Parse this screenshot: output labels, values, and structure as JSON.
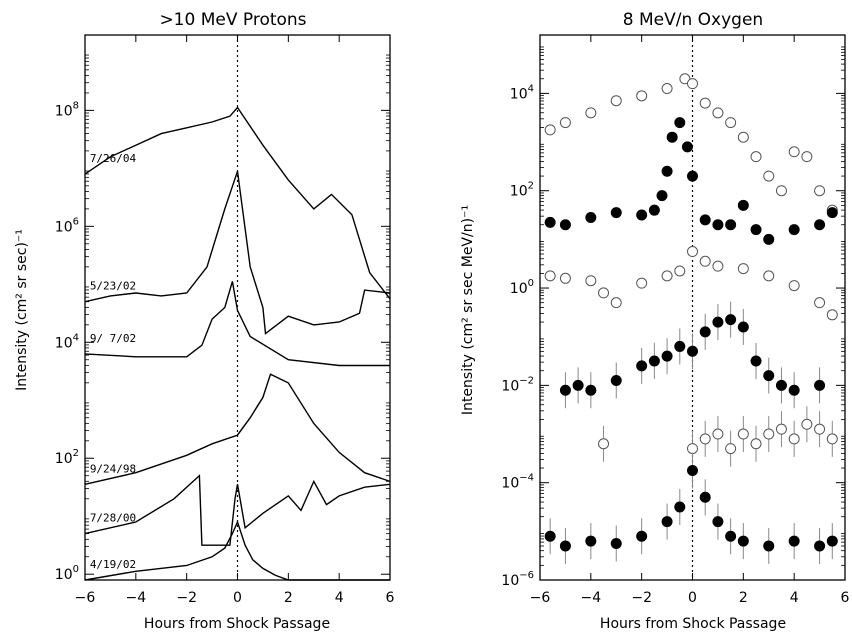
{
  "chart_data": [
    {
      "type": "line",
      "title": ">10 MeV Protons",
      "xlabel": "Hours from Shock Passage",
      "ylabel": "Intensity (cm² sr sec)⁻¹",
      "xlim": [
        -6,
        6
      ],
      "ylim_log10": [
        -0.1,
        9.3
      ],
      "xticks": [
        -6,
        -4,
        -2,
        0,
        2,
        4,
        6
      ],
      "xtick_labels": [
        "−6",
        "−4",
        "−2",
        "0",
        "2",
        "4",
        "6"
      ],
      "yticks_log10": [
        0,
        2,
        4,
        6,
        8
      ],
      "ytick_labels": [
        {
          "base": "10",
          "exp": "0"
        },
        {
          "base": "10",
          "exp": "2"
        },
        {
          "base": "10",
          "exp": "4"
        },
        {
          "base": "10",
          "exp": "6"
        },
        {
          "base": "10",
          "exp": "8"
        }
      ],
      "vline_x": 0,
      "series": [
        {
          "name": "7/26/04",
          "x": [
            -6,
            -5,
            -4,
            -3,
            -2,
            -1,
            -0.3,
            0,
            1,
            2,
            3,
            3.7,
            4.5,
            5.2,
            6
          ],
          "y_log10": [
            6.9,
            7.2,
            7.4,
            7.6,
            7.7,
            7.8,
            7.9,
            8.05,
            7.4,
            6.8,
            6.3,
            6.55,
            6.2,
            5.2,
            4.75
          ]
        },
        {
          "name": "5/23/02",
          "x": [
            -6,
            -5,
            -4,
            -3,
            -2,
            -1.2,
            -0.5,
            0,
            0.5,
            1,
            1.1,
            2,
            3,
            4,
            4.8,
            5,
            6
          ],
          "y_log10": [
            4.7,
            4.8,
            4.85,
            4.8,
            4.85,
            5.3,
            6.3,
            6.95,
            5.3,
            4.6,
            4.15,
            4.45,
            4.3,
            4.35,
            4.5,
            4.9,
            4.85
          ]
        },
        {
          "name": "9/ 7/02",
          "x": [
            -6,
            -4,
            -2,
            -1.4,
            -1,
            -0.5,
            -0.2,
            0,
            0.5,
            2,
            4,
            6
          ],
          "y_log10": [
            3.8,
            3.75,
            3.75,
            3.95,
            4.4,
            4.6,
            5.05,
            4.55,
            4.1,
            3.7,
            3.6,
            3.6
          ]
        },
        {
          "name": "9/24/98",
          "x": [
            -6,
            -4,
            -2,
            -1,
            0,
            0.5,
            1,
            1.3,
            2,
            3,
            4,
            5,
            6
          ],
          "y_log10": [
            1.55,
            1.75,
            2.05,
            2.25,
            2.4,
            2.7,
            3.05,
            3.45,
            3.3,
            2.6,
            2.1,
            1.75,
            1.6
          ]
        },
        {
          "name": "7/28/00",
          "x": [
            -6,
            -4,
            -2.5,
            -1.5,
            -1.4,
            -0.3,
            -0.1,
            0,
            0.3,
            1,
            2,
            2.5,
            3,
            3.5,
            4,
            5,
            6
          ],
          "y_log10": [
            0.7,
            0.9,
            1.3,
            1.7,
            0.5,
            0.5,
            1.3,
            1.55,
            0.8,
            1.05,
            1.35,
            1.1,
            1.6,
            1.2,
            1.35,
            1.5,
            1.55
          ]
        },
        {
          "name": "4/19/02",
          "x": [
            -6,
            -4,
            -2,
            -1,
            -0.5,
            -0.2,
            0,
            0.3,
            0.6,
            1,
            1.5,
            2,
            3,
            6
          ],
          "y_log10": [
            -0.1,
            0.05,
            0.15,
            0.3,
            0.45,
            0.7,
            0.9,
            0.5,
            0.25,
            0.1,
            -0.02,
            -0.1,
            -0.1,
            -0.1
          ]
        }
      ],
      "date_labels": [
        "7/26/04",
        "5/23/02",
        "9/ 7/02",
        "9/24/98",
        "7/28/00",
        "4/19/02"
      ]
    },
    {
      "type": "scatter",
      "title": "8 MeV/n Oxygen",
      "xlabel": "Hours from Shock Passage",
      "ylabel": "Intensity (cm² sr sec MeV/n)⁻¹",
      "xlim": [
        -6,
        6
      ],
      "ylim_log10": [
        -6,
        5.2
      ],
      "xticks": [
        -6,
        -4,
        -2,
        0,
        2,
        4,
        6
      ],
      "xtick_labels": [
        "−6",
        "−4",
        "−2",
        "0",
        "2",
        "4",
        "6"
      ],
      "yticks_log10": [
        -6,
        -4,
        -2,
        0,
        2,
        4
      ],
      "ytick_labels": [
        {
          "base": "10",
          "exp": "−6"
        },
        {
          "base": "10",
          "exp": "−4"
        },
        {
          "base": "10",
          "exp": "−2"
        },
        {
          "base": "10",
          "exp": "0"
        },
        {
          "base": "10",
          "exp": "2"
        },
        {
          "base": "10",
          "exp": "4"
        }
      ],
      "vline_x": 0,
      "series": [
        {
          "marker": "open",
          "x": [
            -5.6,
            -5,
            -4,
            -3,
            -2,
            -1,
            -0.3,
            0,
            0.5,
            1,
            1.5,
            2,
            2.5,
            3,
            3.5,
            4,
            4.5,
            5,
            5.5
          ],
          "y_log10": [
            3.25,
            3.4,
            3.6,
            3.85,
            3.95,
            4.1,
            4.3,
            4.2,
            3.8,
            3.6,
            3.4,
            3.1,
            2.7,
            2.3,
            2.0,
            2.8,
            2.7,
            2.0,
            1.6
          ]
        },
        {
          "marker": "filled",
          "x": [
            -5.6,
            -5,
            -4,
            -3,
            -2,
            -1.5,
            -1.2,
            -1,
            -0.8,
            -0.5,
            -0.2,
            0,
            0.5,
            1,
            1.5,
            2,
            2.5,
            3,
            4,
            5,
            5.5
          ],
          "y_log10": [
            1.35,
            1.3,
            1.45,
            1.55,
            1.5,
            1.6,
            1.9,
            2.4,
            3.1,
            3.4,
            2.9,
            2.3,
            1.4,
            1.3,
            1.3,
            1.7,
            1.2,
            1.0,
            1.2,
            1.3,
            1.55
          ]
        },
        {
          "marker": "open",
          "x": [
            -5.6,
            -5,
            -4,
            -3.5,
            -3,
            -2,
            -1,
            -0.5,
            0,
            0.5,
            1,
            2,
            3,
            4,
            5,
            5.5
          ],
          "y_log10": [
            0.25,
            0.2,
            0.15,
            -0.1,
            -0.3,
            0.1,
            0.25,
            0.35,
            0.75,
            0.55,
            0.45,
            0.4,
            0.25,
            0.05,
            -0.3,
            -0.55
          ]
        },
        {
          "marker": "filled",
          "x": [
            -5,
            -4.5,
            -4,
            -3,
            -2,
            -1.5,
            -1,
            -0.5,
            0,
            0.5,
            1,
            1.5,
            2,
            2.5,
            3,
            3.5,
            4,
            5
          ],
          "y_log10": [
            -2.1,
            -2.0,
            -2.1,
            -1.9,
            -1.6,
            -1.5,
            -1.4,
            -1.2,
            -1.3,
            -0.9,
            -0.7,
            -0.65,
            -0.8,
            -1.5,
            -1.8,
            -2.0,
            -2.1,
            -2.0
          ]
        },
        {
          "marker": "open",
          "x": [
            -3.5,
            0,
            0.5,
            1,
            1.5,
            2,
            2.5,
            3,
            3.5,
            4,
            4.5,
            5,
            5.5
          ],
          "y_log10": [
            -3.2,
            -3.3,
            -3.1,
            -3.0,
            -3.3,
            -3.0,
            -3.2,
            -3.0,
            -2.9,
            -3.1,
            -2.8,
            -2.9,
            -3.1
          ]
        },
        {
          "marker": "filled",
          "x": [
            -5.6,
            -5,
            -4,
            -3,
            -2,
            -1,
            -0.5,
            0,
            0.5,
            1,
            1.5,
            2,
            3,
            4,
            5,
            5.5
          ],
          "y_log10": [
            -5.1,
            -5.3,
            -5.2,
            -5.25,
            -5.1,
            -4.8,
            -4.5,
            -3.75,
            -4.3,
            -4.8,
            -5.1,
            -5.2,
            -5.3,
            -5.2,
            -5.3,
            -5.2
          ]
        }
      ]
    }
  ]
}
